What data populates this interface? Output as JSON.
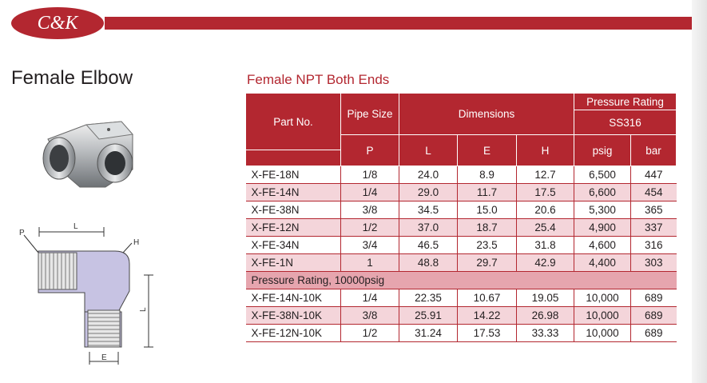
{
  "brand": {
    "logo_text": "C&K"
  },
  "product": {
    "title": "Female Elbow",
    "subtitle": "Female NPT Both Ends"
  },
  "drawing": {
    "label_p": "P",
    "label_l_top": "L",
    "label_h": "H",
    "label_l_side": "L",
    "label_e": "E"
  },
  "table": {
    "headers": {
      "part_no": "Part No.",
      "pipe_size": "Pipe Size",
      "p": "P",
      "dimensions": "Dimensions",
      "l": "L",
      "e": "E",
      "h": "H",
      "pressure_rating": "Pressure Rating",
      "ss316": "SS316",
      "psig": "psig",
      "bar": "bar"
    },
    "rows": [
      {
        "part": "X-FE-18N",
        "p": "1/8",
        "l": "24.0",
        "e": "8.9",
        "h": "12.7",
        "psig": "6,500",
        "bar": "447"
      },
      {
        "part": "X-FE-14N",
        "p": "1/4",
        "l": "29.0",
        "e": "11.7",
        "h": "17.5",
        "psig": "6,600",
        "bar": "454"
      },
      {
        "part": "X-FE-38N",
        "p": "3/8",
        "l": "34.5",
        "e": "15.0",
        "h": "20.6",
        "psig": "5,300",
        "bar": "365"
      },
      {
        "part": "X-FE-12N",
        "p": "1/2",
        "l": "37.0",
        "e": "18.7",
        "h": "25.4",
        "psig": "4,900",
        "bar": "337"
      },
      {
        "part": "X-FE-34N",
        "p": "3/4",
        "l": "46.5",
        "e": "23.5",
        "h": "31.8",
        "psig": "4,600",
        "bar": "316"
      },
      {
        "part": "X-FE-1N",
        "p": "1",
        "l": "48.8",
        "e": "29.7",
        "h": "42.9",
        "psig": "4,400",
        "bar": "303"
      }
    ],
    "section_label": "Pressure Rating, 10000psig",
    "rows_10k": [
      {
        "part": "X-FE-14N-10K",
        "p": "1/4",
        "l": "22.35",
        "e": "10.67",
        "h": "19.05",
        "psig": "10,000",
        "bar": "689"
      },
      {
        "part": "X-FE-38N-10K",
        "p": "3/8",
        "l": "25.91",
        "e": "14.22",
        "h": "26.98",
        "psig": "10,000",
        "bar": "689"
      },
      {
        "part": "X-FE-12N-10K",
        "p": "1/2",
        "l": "31.24",
        "e": "17.53",
        "h": "33.33",
        "psig": "10,000",
        "bar": "689"
      }
    ]
  }
}
